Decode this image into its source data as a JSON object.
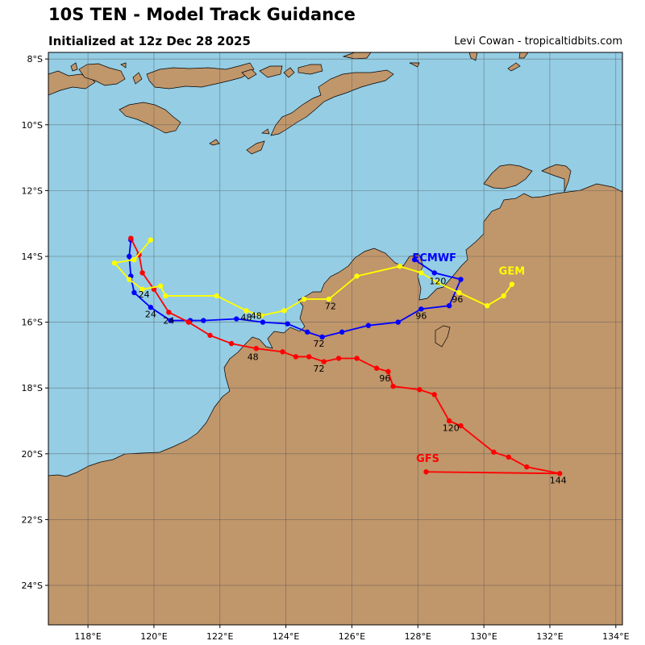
{
  "header": {
    "title": "10S TEN - Model Track Guidance",
    "subtitle": "Initialized at 12z Dec 28 2025",
    "credit": "Levi Cowan - tropicaltidbits.com"
  },
  "map": {
    "lon_range": [
      116.8,
      134.2
    ],
    "lat_range": [
      -25.2,
      -7.8
    ],
    "lon_ticks": [
      {
        "v": 118,
        "label": "118°E"
      },
      {
        "v": 120,
        "label": "120°E"
      },
      {
        "v": 122,
        "label": "122°E"
      },
      {
        "v": 124,
        "label": "124°E"
      },
      {
        "v": 126,
        "label": "126°E"
      },
      {
        "v": 128,
        "label": "128°E"
      },
      {
        "v": 130,
        "label": "130°E"
      },
      {
        "v": 132,
        "label": "132°E"
      },
      {
        "v": 134,
        "label": "134°E"
      }
    ],
    "lat_ticks": [
      {
        "v": -8,
        "label": "8°S"
      },
      {
        "v": -10,
        "label": "10°S"
      },
      {
        "v": -12,
        "label": "12°S"
      },
      {
        "v": -14,
        "label": "14°S"
      },
      {
        "v": -16,
        "label": "16°S"
      },
      {
        "v": -18,
        "label": "18°S"
      },
      {
        "v": -20,
        "label": "20°S"
      },
      {
        "v": -22,
        "label": "22°S"
      },
      {
        "v": -24,
        "label": "24°S"
      }
    ],
    "colors": {
      "ocean": "#94cde4",
      "land": "#c0966b",
      "coast": "#000000",
      "grid": "#555555"
    }
  },
  "tracks": [
    {
      "name": "ECMWF",
      "color": "#0000ff",
      "label_lonlat": [
        128.5,
        -14.15
      ],
      "points": [
        [
          119.3,
          -13.5
        ],
        [
          119.25,
          -14.0
        ],
        [
          119.3,
          -14.6
        ],
        [
          119.4,
          -15.1
        ],
        [
          119.9,
          -15.55
        ],
        [
          120.5,
          -15.95
        ],
        [
          121.1,
          -15.95
        ],
        [
          121.5,
          -15.95
        ],
        [
          122.5,
          -15.9
        ],
        [
          123.3,
          -16.0
        ],
        [
          124.05,
          -16.05
        ],
        [
          124.65,
          -16.3
        ],
        [
          125.1,
          -16.45
        ],
        [
          125.7,
          -16.3
        ],
        [
          126.5,
          -16.1
        ],
        [
          127.4,
          -16.0
        ],
        [
          128.1,
          -15.6
        ],
        [
          128.95,
          -15.5
        ],
        [
          129.3,
          -14.7
        ],
        [
          128.5,
          -14.5
        ],
        [
          127.9,
          -14.1
        ]
      ],
      "hour_labels": [
        {
          "text": "24",
          "lonlat": [
            119.7,
            -15.25
          ]
        },
        {
          "text": "24",
          "lonlat": [
            119.9,
            -15.85
          ]
        },
        {
          "text": "48",
          "lonlat": [
            123.1,
            -15.9
          ]
        },
        {
          "text": "72",
          "lonlat": [
            125.0,
            -16.75
          ]
        },
        {
          "text": "96",
          "lonlat": [
            128.1,
            -15.9
          ]
        },
        {
          "text": "120",
          "lonlat": [
            128.6,
            -14.85
          ]
        }
      ]
    },
    {
      "name": "GFS",
      "color": "#ff0000",
      "label_lonlat": [
        128.3,
        -20.25
      ],
      "points": [
        [
          119.3,
          -13.45
        ],
        [
          119.55,
          -13.95
        ],
        [
          119.65,
          -14.5
        ],
        [
          120.0,
          -15.0
        ],
        [
          120.45,
          -15.7
        ],
        [
          121.05,
          -16.0
        ],
        [
          121.7,
          -16.4
        ],
        [
          122.35,
          -16.65
        ],
        [
          123.1,
          -16.8
        ],
        [
          123.9,
          -16.9
        ],
        [
          124.3,
          -17.05
        ],
        [
          124.7,
          -17.05
        ],
        [
          125.15,
          -17.2
        ],
        [
          125.6,
          -17.1
        ],
        [
          126.15,
          -17.1
        ],
        [
          126.75,
          -17.4
        ],
        [
          127.1,
          -17.5
        ],
        [
          127.25,
          -17.95
        ],
        [
          128.05,
          -18.05
        ],
        [
          128.5,
          -18.2
        ],
        [
          128.95,
          -19.0
        ],
        [
          129.3,
          -19.15
        ],
        [
          130.3,
          -19.95
        ],
        [
          130.75,
          -20.1
        ],
        [
          131.3,
          -20.4
        ],
        [
          132.3,
          -20.6
        ],
        [
          128.25,
          -20.55
        ]
      ],
      "hour_labels": [
        {
          "text": "24",
          "lonlat": [
            120.45,
            -16.05
          ]
        },
        {
          "text": "48",
          "lonlat": [
            123.0,
            -17.15
          ]
        },
        {
          "text": "72",
          "lonlat": [
            125.0,
            -17.5
          ]
        },
        {
          "text": "96",
          "lonlat": [
            127.0,
            -17.8
          ]
        },
        {
          "text": "120",
          "lonlat": [
            129.0,
            -19.3
          ]
        },
        {
          "text": "144",
          "lonlat": [
            132.25,
            -20.9
          ]
        }
      ]
    },
    {
      "name": "GEM",
      "color": "#ffff00",
      "label_lonlat": [
        130.85,
        -14.55
      ],
      "points": [
        [
          119.9,
          -13.5
        ],
        [
          119.4,
          -14.1
        ],
        [
          118.8,
          -14.2
        ],
        [
          119.25,
          -14.7
        ],
        [
          119.65,
          -15.0
        ],
        [
          120.2,
          -14.9
        ],
        [
          120.35,
          -15.2
        ],
        [
          121.9,
          -15.2
        ],
        [
          122.8,
          -15.65
        ],
        [
          123.25,
          -15.8
        ],
        [
          123.95,
          -15.65
        ],
        [
          124.55,
          -15.3
        ],
        [
          125.3,
          -15.3
        ],
        [
          126.15,
          -14.6
        ],
        [
          127.45,
          -14.3
        ],
        [
          128.1,
          -14.5
        ],
        [
          128.6,
          -14.8
        ],
        [
          129.25,
          -15.1
        ],
        [
          130.1,
          -15.5
        ],
        [
          130.6,
          -15.2
        ],
        [
          130.85,
          -14.85
        ]
      ],
      "hour_labels": [
        {
          "text": "48",
          "lonlat": [
            122.8,
            -15.95
          ]
        },
        {
          "text": "72",
          "lonlat": [
            125.35,
            -15.6
          ]
        },
        {
          "text": "96",
          "lonlat": [
            129.2,
            -15.4
          ]
        }
      ]
    }
  ]
}
